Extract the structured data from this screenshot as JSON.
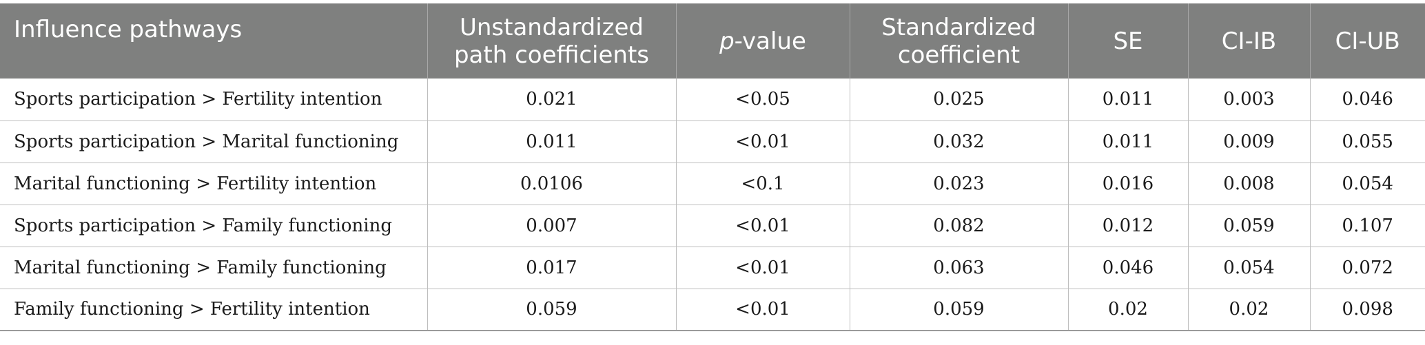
{
  "table": {
    "headers": {
      "pathway": "Influence pathways",
      "unstd_line1": "Unstandardized",
      "unstd_line2": "path coefficients",
      "pvalue_italic": "p",
      "pvalue_rest": "-value",
      "std_line1": "Standardized",
      "std_line2": "coefficient",
      "se": "SE",
      "ci_lb": "CI-IB",
      "ci_ub": "CI-UB"
    },
    "rows": [
      {
        "pathway": "Sports participation > Fertility intention",
        "unstd": "0.021",
        "p": "<0.05",
        "std": "0.025",
        "se": "0.011",
        "ci_lb": "0.003",
        "ci_ub": "0.046"
      },
      {
        "pathway": "Sports participation > Marital functioning",
        "unstd": "0.011",
        "p": "<0.01",
        "std": "0.032",
        "se": "0.011",
        "ci_lb": "0.009",
        "ci_ub": "0.055"
      },
      {
        "pathway": "Marital functioning > Fertility intention",
        "unstd": "0.0106",
        "p": "<0.1",
        "std": "0.023",
        "se": "0.016",
        "ci_lb": "0.008",
        "ci_ub": "0.054"
      },
      {
        "pathway": "Sports participation > Family functioning",
        "unstd": "0.007",
        "p": "<0.01",
        "std": "0.082",
        "se": "0.012",
        "ci_lb": "0.059",
        "ci_ub": "0.107"
      },
      {
        "pathway": "Marital functioning > Family functioning",
        "unstd": "0.017",
        "p": "<0.01",
        "std": "0.063",
        "se": "0.046",
        "ci_lb": "0.054",
        "ci_ub": "0.072"
      },
      {
        "pathway": "Family functioning > Fertility intention",
        "unstd": "0.059",
        "p": "<0.01",
        "std": "0.059",
        "se": "0.02",
        "ci_lb": "0.02",
        "ci_ub": "0.098"
      }
    ]
  }
}
